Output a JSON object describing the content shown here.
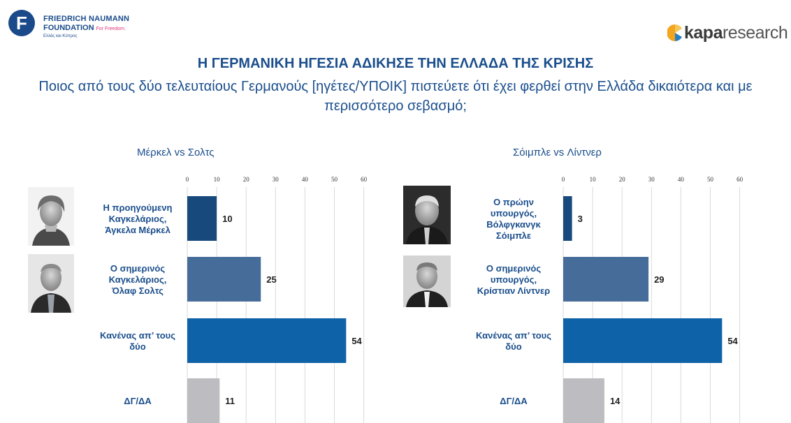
{
  "header": {
    "fnf": {
      "logo_letter": "F",
      "name_line1": "FRIEDRICH NAUMANN",
      "name_line2": "FOUNDATION",
      "tagline": "For Freedom.",
      "region": "Ελλάς και Κύπρος"
    },
    "kapa": {
      "name_bold": "kapa",
      "name_light": "research"
    }
  },
  "title": "Η ΓΕΡΜΑΝΙΚΗ ΗΓΕΣΙΑ ΑΔΙΚΗΣΕ ΤΗΝ ΕΛΛΑΔΑ ΤΗΣ ΚΡΙΣΗΣ",
  "subtitle": "Ποιος από τους δύο τελευταίους Γερμανούς [ηγέτες/ΥΠΟΙΚ] πιστεύετε ότι έχει φερθεί στην Ελλάδα δικαιότερα και με περισσότερο σεβασμό;",
  "colors": {
    "dark_blue": "#17497d",
    "mid_blue": "#466d9a",
    "bright_blue": "#0e62a8",
    "grey": "#bdbdc1",
    "text_blue": "#1a4e8c"
  },
  "chart_data": [
    {
      "type": "bar",
      "orientation": "horizontal",
      "title": "Μέρκελ vs Σολτς",
      "xlim": [
        0,
        60
      ],
      "ticks": [
        0,
        10,
        20,
        30,
        40,
        50,
        60
      ],
      "categories": [
        [
          "Η προηγούμενη",
          "Καγκελάριος,",
          "Άγκελα Μέρκελ"
        ],
        [
          "Ο σημερινός",
          "Καγκελάριος,",
          "Όλαφ Σολτς"
        ],
        [
          "Κανένας απ’ τους",
          "δύο"
        ],
        [
          "ΔΓ/ΔΑ"
        ]
      ],
      "values": [
        10,
        25,
        54,
        11
      ],
      "bar_colors": [
        "#17497d",
        "#466d9a",
        "#0e62a8",
        "#bdbdc1"
      ],
      "photos": [
        "merkel-photo",
        "scholz-photo",
        null,
        null
      ],
      "grid": true
    },
    {
      "type": "bar",
      "orientation": "horizontal",
      "title": "Σόιμπλε vs Λίντνερ",
      "xlim": [
        0,
        60
      ],
      "ticks": [
        0,
        10,
        20,
        30,
        40,
        50,
        60
      ],
      "categories": [
        [
          "Ο πρώην",
          "υπουργός,",
          "Βόλφγκανγκ",
          "Σόιμπλε"
        ],
        [
          "Ο σημερινός",
          "υπουργός,",
          "Κρίστιαν Λίντνερ"
        ],
        [
          "Κανένας απ’ τους",
          "δύο"
        ],
        [
          "ΔΓ/ΔΑ"
        ]
      ],
      "values": [
        3,
        29,
        54,
        14
      ],
      "bar_colors": [
        "#17497d",
        "#466d9a",
        "#0e62a8",
        "#bdbdc1"
      ],
      "photos": [
        "schauble-photo",
        "lindner-photo",
        null,
        null
      ],
      "grid": true
    }
  ]
}
